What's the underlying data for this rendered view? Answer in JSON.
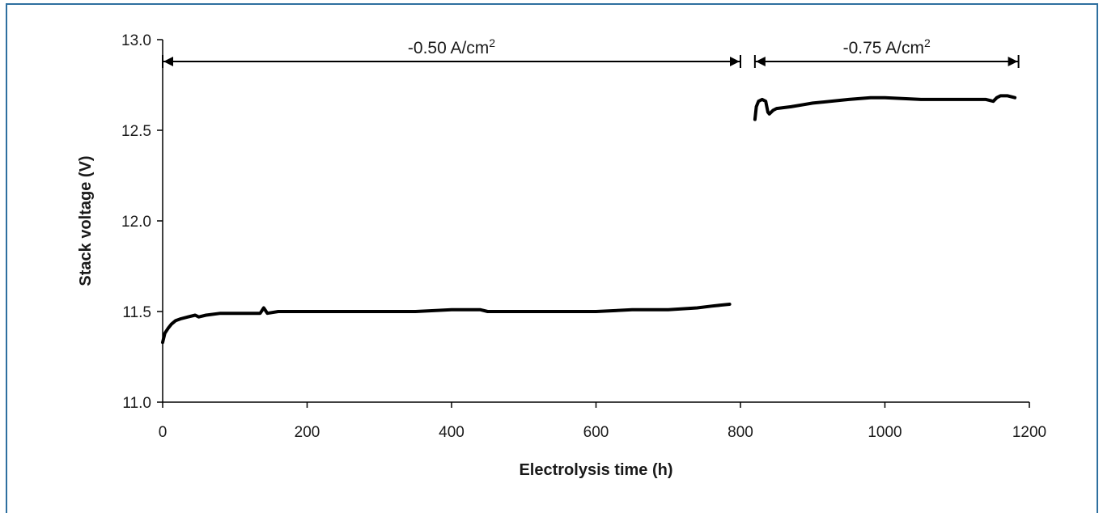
{
  "colors": {
    "frame": "#2e6f9f",
    "line": "#000000",
    "axis": "#000000"
  },
  "chart_data": {
    "type": "line",
    "title": "",
    "xlabel": "Electrolysis time (h)",
    "ylabel": "Stack voltage (V)",
    "xlim": [
      0,
      1200
    ],
    "ylim": [
      11.0,
      13.0
    ],
    "x_ticks": [
      "0",
      "200",
      "400",
      "600",
      "800",
      "1000",
      "1200"
    ],
    "y_ticks": [
      "11.0",
      "11.5",
      "12.0",
      "12.5",
      "13.0"
    ],
    "grid": false,
    "annotations": [
      {
        "text_prefix": "-0.50 A/cm",
        "superscript": "2",
        "x_start": 0,
        "x_end": 800
      },
      {
        "text_prefix": "-0.75 A/cm",
        "superscript": "2",
        "x_start": 820,
        "x_end": 1185
      }
    ],
    "series": [
      {
        "segments": [
          {
            "x": [
              0,
              3,
              8,
              12,
              18,
              25,
              35,
              45,
              50,
              60,
              80,
              100,
              120,
              135,
              140,
              145,
              160,
              200,
              240,
              280,
              300,
              350,
              400,
              440,
              450,
              470,
              500,
              550,
              600,
              650,
              700,
              740,
              760,
              785
            ],
            "y": [
              11.33,
              11.38,
              11.41,
              11.43,
              11.45,
              11.46,
              11.47,
              11.48,
              11.47,
              11.48,
              11.49,
              11.49,
              11.49,
              11.49,
              11.52,
              11.49,
              11.5,
              11.5,
              11.5,
              11.5,
              11.5,
              11.5,
              11.51,
              11.51,
              11.5,
              11.5,
              11.5,
              11.5,
              11.5,
              11.51,
              11.51,
              11.52,
              11.53,
              11.54
            ]
          },
          {
            "x": [
              820,
              822,
              825,
              830,
              835,
              838,
              840,
              845,
              850,
              870,
              900,
              950,
              980,
              1000,
              1050,
              1100,
              1140,
              1150,
              1155,
              1160,
              1170,
              1180
            ],
            "y": [
              12.56,
              12.63,
              12.66,
              12.67,
              12.66,
              12.6,
              12.59,
              12.61,
              12.62,
              12.63,
              12.65,
              12.67,
              12.68,
              12.68,
              12.67,
              12.67,
              12.67,
              12.66,
              12.68,
              12.69,
              12.69,
              12.68
            ]
          }
        ]
      }
    ]
  }
}
